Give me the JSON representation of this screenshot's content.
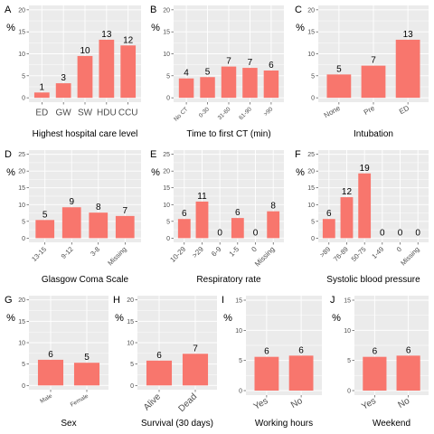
{
  "y_axis_label": "%",
  "chart_data": [
    {
      "panel": "A",
      "type": "bar",
      "xlabel": "Highest hospital care level",
      "ylabel": "%",
      "ylim": [
        0,
        20
      ],
      "yticks": [
        0,
        5,
        10,
        15,
        20
      ],
      "grid": true,
      "categories": [
        "ED",
        "GW",
        "SW",
        "HDU",
        "CCU"
      ],
      "counts": [
        "1",
        "3",
        "10",
        "13",
        "12"
      ],
      "values": [
        1.2,
        3.3,
        9.5,
        13.2,
        11.9
      ]
    },
    {
      "panel": "B",
      "type": "bar",
      "xlabel": "Time to first CT (min)",
      "ylabel": "%",
      "ylim": [
        0,
        20
      ],
      "yticks": [
        0,
        5,
        10,
        15,
        20
      ],
      "grid": true,
      "categories": [
        "No CT",
        "0-30",
        "31-60",
        "61-90",
        ">90"
      ],
      "counts": [
        "4",
        "5",
        "7",
        "7",
        "6"
      ],
      "values": [
        4.4,
        4.7,
        7.1,
        6.8,
        6.2
      ]
    },
    {
      "panel": "C",
      "type": "bar",
      "xlabel": "Intubation",
      "ylabel": "%",
      "ylim": [
        0,
        20
      ],
      "yticks": [
        0,
        5,
        10,
        15,
        20
      ],
      "grid": true,
      "categories": [
        "None",
        "Pre",
        "ED"
      ],
      "counts": [
        "5",
        "7",
        "13"
      ],
      "values": [
        5.3,
        7.3,
        13.2
      ]
    },
    {
      "panel": "D",
      "type": "bar",
      "xlabel": "Glasgow Coma Scale",
      "ylabel": "%",
      "ylim": [
        0,
        25
      ],
      "yticks": [
        0,
        5,
        10,
        15,
        20,
        25
      ],
      "grid": true,
      "categories": [
        "13-15",
        "9-12",
        "3-8",
        "Missing"
      ],
      "counts": [
        "5",
        "9",
        "8",
        "7"
      ],
      "values": [
        5.4,
        9.2,
        7.6,
        6.6
      ]
    },
    {
      "panel": "E",
      "type": "bar",
      "xlabel": "Respiratory rate",
      "ylabel": "%",
      "ylim": [
        0,
        25
      ],
      "yticks": [
        0,
        5,
        10,
        15,
        20,
        25
      ],
      "grid": true,
      "categories": [
        "10-29",
        ">29",
        "6-9",
        "1-5",
        "0",
        "Missing"
      ],
      "counts": [
        "6",
        "11",
        "0",
        "6",
        "0",
        "8"
      ],
      "values": [
        5.7,
        10.9,
        0,
        6.0,
        0,
        8.0
      ]
    },
    {
      "panel": "F",
      "type": "bar",
      "xlabel": "Systolic blood pressure",
      "ylabel": "%",
      "ylim": [
        0,
        25
      ],
      "yticks": [
        0,
        5,
        10,
        15,
        20,
        25
      ],
      "grid": true,
      "categories": [
        ">89",
        "76-89",
        "50-75",
        "1-49",
        "0",
        "Missing"
      ],
      "counts": [
        "6",
        "12",
        "19",
        "0",
        "0",
        "0"
      ],
      "values": [
        5.7,
        12.2,
        19.3,
        0,
        0,
        0
      ]
    },
    {
      "panel": "G",
      "type": "bar",
      "xlabel": "Sex",
      "ylabel": "%",
      "ylim": [
        0,
        20
      ],
      "yticks": [
        0,
        5,
        10,
        15,
        20
      ],
      "grid": true,
      "categories": [
        "Male",
        "Female"
      ],
      "counts": [
        "6",
        "5"
      ],
      "values": [
        6.0,
        5.3
      ]
    },
    {
      "panel": "H",
      "type": "bar",
      "xlabel": "Survival (30 days)",
      "ylabel": "%",
      "ylim": [
        0,
        20
      ],
      "yticks": [
        0,
        5,
        10,
        15,
        20
      ],
      "grid": true,
      "categories": [
        "Alive",
        "Dead"
      ],
      "counts": [
        "6",
        "7"
      ],
      "values": [
        5.8,
        7.4
      ]
    },
    {
      "panel": "I",
      "type": "bar",
      "xlabel": "Working hours",
      "ylabel": "%",
      "ylim": [
        0,
        15
      ],
      "yticks": [
        0,
        5,
        10,
        15
      ],
      "grid": true,
      "categories": [
        "Yes",
        "No"
      ],
      "counts": [
        "6",
        "6"
      ],
      "values": [
        5.6,
        5.8
      ]
    },
    {
      "panel": "J",
      "type": "bar",
      "xlabel": "Weekend",
      "ylabel": "%",
      "ylim": [
        0,
        15
      ],
      "yticks": [
        0,
        5,
        10,
        15
      ],
      "grid": true,
      "categories": [
        "Yes",
        "No"
      ],
      "counts": [
        "6",
        "6"
      ],
      "values": [
        5.6,
        5.8
      ]
    }
  ]
}
